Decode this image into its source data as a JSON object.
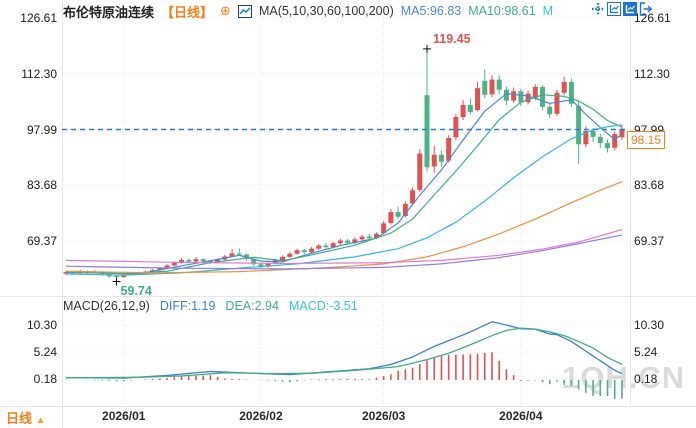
{
  "header": {
    "title": "布伦特原油连续",
    "period_tag": "【日线】",
    "plus_icon": "⊕",
    "ma_label": "MA(5,10,30,60,100,200)",
    "ma5_label": "MA5:96.83",
    "ma10_label": "MA10:98.61",
    "ma_truncated": "M"
  },
  "toolbar": {
    "icons": [
      "move-crosshair-icon",
      "axis-scale-icon",
      "axis-scale-active-icon",
      "exit-chart-icon"
    ]
  },
  "main_axis": {
    "ticks": [
      "126.61",
      "112.30",
      "97.99",
      "83.68",
      "69.37"
    ]
  },
  "macd_axis": {
    "ticks": [
      "10.30",
      "5.24",
      "0.18"
    ]
  },
  "x_axis": {
    "labels": [
      "2026/01",
      "2026/02",
      "2026/03",
      "2026/04"
    ]
  },
  "macd_header": {
    "label": "MACD(26,12,9)",
    "diff": "DIFF:1.19",
    "dea": "DEA:2.94",
    "macd": "MACD:-3.51"
  },
  "annotations": {
    "high": "119.45",
    "low": "59.74",
    "last_price": "98.15"
  },
  "period_selector": {
    "label": "日线",
    "arrow": "▲"
  },
  "watermark": "1QH.CN",
  "colors": {
    "accent_orange": "#f28019",
    "up_red": "#e05252",
    "down_green": "#4eb383",
    "ma5_blue": "#4f86d6",
    "ma10_green": "#3fae85",
    "ma30_cyan": "#35b8d8",
    "ma60_orange": "#f09038",
    "ma100_purple": "#8f7de8",
    "ma200_pink": "#e07bd0",
    "diff_blue": "#3d7fd6",
    "dea_green": "#3fae85",
    "macd_cyan": "#35c3e0",
    "dashed_blue": "#1e7fe0",
    "toolbar_blue": "#1c74d4",
    "watermark_gray": "#c4c4ca",
    "text_dark": "#222222",
    "grid": "#e2e3ea"
  },
  "chart_data": {
    "type": "candlestick_with_macd",
    "title": "布伦特原油连续 日线",
    "y_ticks_main": [
      126.61,
      112.3,
      97.99,
      83.68,
      69.37
    ],
    "y_ticks_macd": [
      10.3,
      5.24,
      0.18
    ],
    "x_tick_labels": [
      "2026/01",
      "2026/02",
      "2026/03",
      "2026/04"
    ],
    "x_tick_indices": [
      8,
      27,
      44,
      63
    ],
    "prev_close_line": 97.99,
    "last_close": 98.15,
    "high_annotation": {
      "index": 50,
      "value": 119.45
    },
    "low_annotation": {
      "index": 7,
      "value": 59.74
    },
    "candles": [
      [
        61.0,
        61.8,
        60.6,
        61.4
      ],
      [
        61.4,
        61.7,
        60.8,
        61.1
      ],
      [
        61.1,
        61.9,
        60.9,
        61.6
      ],
      [
        61.6,
        61.8,
        60.8,
        61.2
      ],
      [
        61.2,
        61.9,
        61.0,
        61.5
      ],
      [
        61.5,
        61.6,
        60.5,
        60.9
      ],
      [
        60.9,
        61.0,
        59.9,
        60.3
      ],
      [
        60.4,
        60.7,
        59.74,
        60.1
      ],
      [
        60.1,
        61.0,
        59.9,
        60.8
      ],
      [
        60.8,
        61.5,
        60.5,
        61.2
      ],
      [
        61.2,
        61.5,
        60.7,
        61.0
      ],
      [
        61.0,
        61.8,
        60.8,
        61.5
      ],
      [
        61.5,
        62.2,
        61.3,
        61.9
      ],
      [
        61.9,
        62.7,
        61.7,
        62.4
      ],
      [
        62.4,
        63.4,
        62.2,
        63.1
      ],
      [
        63.1,
        64.2,
        62.9,
        63.8
      ],
      [
        63.8,
        65.0,
        63.6,
        64.5
      ],
      [
        64.5,
        64.9,
        63.7,
        64.1
      ],
      [
        64.1,
        65.2,
        63.9,
        64.7
      ],
      [
        64.7,
        64.9,
        63.8,
        64.2
      ],
      [
        64.2,
        64.5,
        63.4,
        63.8
      ],
      [
        63.8,
        64.9,
        63.6,
        64.6
      ],
      [
        64.6,
        65.8,
        64.4,
        65.4
      ],
      [
        65.4,
        67.3,
        65.2,
        66.2
      ],
      [
        66.2,
        67.5,
        65.5,
        65.9
      ],
      [
        65.9,
        66.1,
        64.3,
        64.8
      ],
      [
        64.8,
        64.9,
        63.0,
        63.4
      ],
      [
        63.4,
        63.7,
        62.4,
        62.8
      ],
      [
        62.8,
        63.9,
        62.5,
        63.6
      ],
      [
        63.6,
        64.8,
        63.4,
        64.5
      ],
      [
        64.5,
        65.7,
        64.2,
        65.3
      ],
      [
        65.3,
        66.5,
        65.0,
        66.1
      ],
      [
        66.1,
        67.4,
        65.9,
        67.0
      ],
      [
        67.0,
        67.3,
        66.0,
        66.5
      ],
      [
        66.5,
        67.8,
        66.2,
        67.4
      ],
      [
        67.4,
        68.6,
        67.1,
        68.2
      ],
      [
        68.2,
        68.9,
        67.3,
        67.8
      ],
      [
        67.8,
        69.2,
        67.5,
        68.8
      ],
      [
        68.8,
        70.0,
        68.4,
        69.5
      ],
      [
        69.5,
        69.9,
        68.4,
        68.9
      ],
      [
        68.9,
        70.3,
        68.6,
        69.8
      ],
      [
        69.8,
        71.0,
        69.4,
        70.5
      ],
      [
        70.5,
        71.2,
        69.7,
        70.1
      ],
      [
        70.1,
        71.6,
        69.9,
        71.2
      ],
      [
        71.4,
        74.5,
        71.1,
        73.9
      ],
      [
        74.0,
        77.6,
        73.6,
        76.8
      ],
      [
        76.8,
        78.2,
        75.0,
        75.6
      ],
      [
        75.8,
        79.5,
        75.4,
        78.9
      ],
      [
        79.0,
        83.2,
        78.5,
        82.4
      ],
      [
        82.5,
        93.0,
        82.0,
        91.8
      ],
      [
        106.8,
        119.45,
        87.2,
        88.3
      ],
      [
        88.5,
        93.8,
        86.9,
        91.5
      ],
      [
        91.5,
        92.6,
        88.4,
        89.7
      ],
      [
        90.0,
        96.5,
        89.5,
        95.8
      ],
      [
        96.0,
        102.0,
        95.2,
        101.2
      ],
      [
        101.2,
        105.6,
        100.4,
        104.3
      ],
      [
        104.3,
        106.0,
        101.8,
        102.5
      ],
      [
        103.0,
        110.2,
        102.6,
        108.6
      ],
      [
        110.5,
        113.4,
        106.0,
        106.9
      ],
      [
        107.0,
        112.0,
        106.2,
        110.8
      ],
      [
        110.8,
        111.9,
        107.0,
        108.2
      ],
      [
        108.2,
        109.0,
        104.2,
        105.4
      ],
      [
        105.4,
        108.8,
        104.8,
        107.8
      ],
      [
        107.8,
        108.4,
        104.0,
        104.9
      ],
      [
        105.0,
        108.0,
        104.4,
        107.2
      ],
      [
        106.0,
        109.6,
        105.5,
        108.9
      ],
      [
        108.9,
        109.4,
        102.9,
        103.8
      ],
      [
        103.8,
        104.6,
        100.8,
        101.9
      ],
      [
        102.0,
        108.2,
        101.4,
        107.4
      ],
      [
        107.4,
        111.5,
        106.8,
        110.2
      ],
      [
        110.2,
        111.0,
        103.8,
        104.6
      ],
      [
        104.0,
        105.2,
        89.2,
        94.2
      ],
      [
        94.2,
        98.8,
        93.5,
        97.6
      ],
      [
        97.6,
        98.4,
        94.8,
        96.1
      ],
      [
        96.1,
        96.9,
        93.2,
        94.5
      ],
      [
        94.5,
        95.4,
        92.1,
        93.2
      ],
      [
        93.3,
        97.5,
        92.6,
        96.8
      ],
      [
        96.0,
        99.2,
        95.3,
        98.15
      ]
    ],
    "ma_series": [
      {
        "name": "MA5",
        "color_key": "ma5_blue",
        "points": [
          [
            0,
            61.3
          ],
          [
            6,
            61.1
          ],
          [
            10,
            60.9
          ],
          [
            16,
            63.0
          ],
          [
            20,
            64.3
          ],
          [
            24,
            65.7
          ],
          [
            27,
            64.2
          ],
          [
            30,
            64.0
          ],
          [
            33,
            65.7
          ],
          [
            38,
            68.2
          ],
          [
            43,
            70.1
          ],
          [
            46,
            74.0
          ],
          [
            49,
            81.1
          ],
          [
            52,
            87.6
          ],
          [
            55,
            95.3
          ],
          [
            58,
            102.7
          ],
          [
            61,
            107.2
          ],
          [
            64,
            106.6
          ],
          [
            67,
            104.7
          ],
          [
            70,
            105.6
          ],
          [
            72,
            101.9
          ],
          [
            74,
            98.5
          ],
          [
            76,
            95.4
          ],
          [
            77,
            96.8
          ]
        ]
      },
      {
        "name": "MA10",
        "color_key": "ma10_green",
        "points": [
          [
            0,
            61.5
          ],
          [
            8,
            61.0
          ],
          [
            14,
            61.6
          ],
          [
            20,
            63.8
          ],
          [
            26,
            65.2
          ],
          [
            30,
            64.3
          ],
          [
            34,
            65.8
          ],
          [
            40,
            68.3
          ],
          [
            45,
            71.4
          ],
          [
            48,
            75.0
          ],
          [
            51,
            81.2
          ],
          [
            54,
            87.3
          ],
          [
            57,
            93.8
          ],
          [
            60,
            100.5
          ],
          [
            63,
            105.0
          ],
          [
            66,
            106.9
          ],
          [
            69,
            106.5
          ],
          [
            71,
            105.3
          ],
          [
            73,
            103.2
          ],
          [
            75,
            100.3
          ],
          [
            77,
            98.61
          ]
        ]
      },
      {
        "name": "MA30",
        "color_key": "ma30_cyan",
        "points": [
          [
            0,
            60.9
          ],
          [
            8,
            60.6
          ],
          [
            16,
            61.2
          ],
          [
            24,
            62.4
          ],
          [
            32,
            63.5
          ],
          [
            40,
            65.3
          ],
          [
            46,
            67.4
          ],
          [
            50,
            70.2
          ],
          [
            54,
            74.2
          ],
          [
            58,
            79.6
          ],
          [
            62,
            85.6
          ],
          [
            66,
            91.0
          ],
          [
            70,
            95.6
          ],
          [
            73,
            97.9
          ],
          [
            75,
            98.7
          ],
          [
            77,
            99.2
          ]
        ]
      },
      {
        "name": "MA60",
        "color_key": "ma60_orange",
        "points": [
          [
            0,
            61.6
          ],
          [
            12,
            61.2
          ],
          [
            24,
            61.5
          ],
          [
            36,
            62.5
          ],
          [
            44,
            63.5
          ],
          [
            50,
            65.3
          ],
          [
            55,
            67.9
          ],
          [
            60,
            71.2
          ],
          [
            65,
            75.0
          ],
          [
            70,
            79.2
          ],
          [
            74,
            82.4
          ],
          [
            77,
            84.6
          ]
        ]
      },
      {
        "name": "MA100",
        "color_key": "ma100_purple",
        "points": [
          [
            0,
            62.9
          ],
          [
            15,
            62.4
          ],
          [
            30,
            62.2
          ],
          [
            44,
            62.6
          ],
          [
            52,
            63.5
          ],
          [
            60,
            65.1
          ],
          [
            66,
            66.9
          ],
          [
            71,
            68.7
          ],
          [
            77,
            70.9
          ]
        ]
      },
      {
        "name": "MA200",
        "color_key": "ma200_pink",
        "points": [
          [
            0,
            64.4
          ],
          [
            15,
            63.9
          ],
          [
            30,
            63.6
          ],
          [
            44,
            63.8
          ],
          [
            52,
            64.4
          ],
          [
            60,
            65.7
          ],
          [
            66,
            67.3
          ],
          [
            71,
            69.1
          ],
          [
            77,
            72.3
          ]
        ]
      }
    ],
    "macd": {
      "params": [
        26,
        12,
        9
      ],
      "diff_last": 1.19,
      "dea_last": 2.94,
      "macd_last": -3.51,
      "histogram_rule": "2*(DIFF-DEA)",
      "diff_points": [
        [
          0,
          0.45
        ],
        [
          8,
          0.35
        ],
        [
          14,
          0.85
        ],
        [
          20,
          1.6
        ],
        [
          26,
          1.25
        ],
        [
          31,
          1.0
        ],
        [
          36,
          1.5
        ],
        [
          42,
          2.1
        ],
        [
          45,
          2.9
        ],
        [
          48,
          4.3
        ],
        [
          51,
          6.3
        ],
        [
          54,
          7.9
        ],
        [
          56,
          9.0
        ],
        [
          59,
          10.9
        ],
        [
          61,
          10.3
        ],
        [
          63,
          9.6
        ],
        [
          65,
          9.5
        ],
        [
          67,
          8.6
        ],
        [
          68,
          8.5
        ],
        [
          70,
          7.2
        ],
        [
          72,
          5.4
        ],
        [
          74,
          3.6
        ],
        [
          76,
          1.8
        ],
        [
          77,
          1.19
        ]
      ],
      "dea_points": [
        [
          0,
          0.42
        ],
        [
          10,
          0.5
        ],
        [
          16,
          0.75
        ],
        [
          22,
          1.35
        ],
        [
          28,
          1.2
        ],
        [
          34,
          1.25
        ],
        [
          40,
          1.8
        ],
        [
          46,
          2.5
        ],
        [
          50,
          3.8
        ],
        [
          53,
          5.0
        ],
        [
          56,
          6.6
        ],
        [
          59,
          8.3
        ],
        [
          61,
          9.3
        ],
        [
          63,
          9.7
        ],
        [
          65,
          9.55
        ],
        [
          67,
          9.0
        ],
        [
          69,
          8.3
        ],
        [
          71,
          7.2
        ],
        [
          73,
          6.0
        ],
        [
          75,
          4.2
        ],
        [
          77,
          2.94
        ]
      ]
    }
  }
}
